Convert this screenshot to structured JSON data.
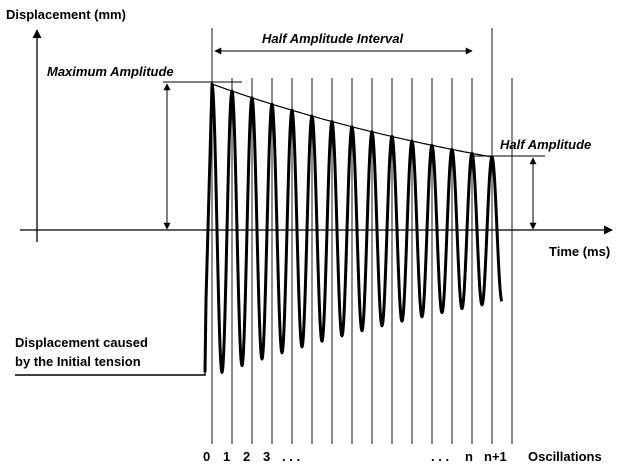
{
  "labels": {
    "y_axis": "Displacement (mm)",
    "x_axis": "Time (ms)",
    "max_amplitude": "Maximum Amplitude",
    "half_amplitude_interval": "Half Amplitude Interval",
    "half_amplitude": "Half Amplitude",
    "initial_tension_line1": "Displacement caused",
    "initial_tension_line2": "by the Initial tension",
    "oscillations": "Oscillations"
  },
  "oscillation_ticks": [
    "0",
    "1",
    "2",
    "3",
    ". . .",
    ". . .",
    "n",
    "n+1"
  ],
  "oscillation_count": 15
}
